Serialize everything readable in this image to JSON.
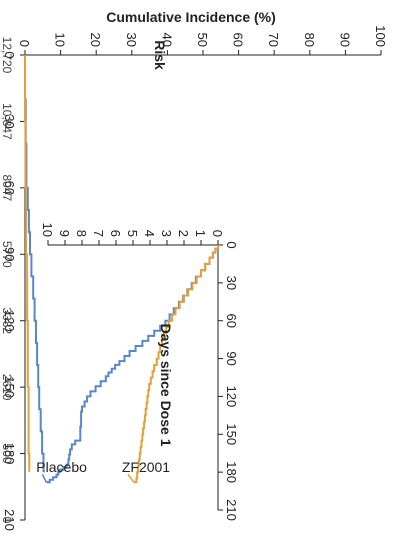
{
  "chart_data": {
    "type": "line",
    "ylabel": "Cumulative Incidence (%)",
    "xlabel": "Days since Dose 1",
    "risk_label": "Risk",
    "x_ticks": [
      "0",
      "30",
      "60",
      "90",
      "120",
      "150",
      "180",
      "210"
    ],
    "y_ticks_main": [
      "0",
      "10",
      "20",
      "30",
      "40",
      "50",
      "60",
      "70",
      "80",
      "90",
      "100"
    ],
    "y_ticks_inset": [
      "0",
      "1",
      "2",
      "3",
      "4",
      "5",
      "6",
      "7",
      "8",
      "9",
      "10"
    ],
    "number_at_risk": [
      "12,720",
      "10,847",
      "8047",
      "5770",
      "3382",
      "2610",
      "500",
      "0"
    ],
    "xlim": [
      0,
      210
    ],
    "ylim_main": [
      0,
      100
    ],
    "ylim_inset": [
      0,
      10
    ],
    "colors": {
      "placebo": "#5b86c5",
      "zf2001": "#e2a03f"
    },
    "series": [
      {
        "name": "Placebo",
        "x": [
          0,
          3,
          6,
          10,
          15,
          20,
          25,
          30,
          35,
          40,
          45,
          50,
          55,
          60,
          64,
          68,
          72,
          76,
          80,
          84,
          88,
          92,
          95,
          98,
          101,
          104,
          108,
          112,
          116,
          120,
          124,
          128,
          132,
          138,
          144,
          150,
          155,
          158,
          162,
          166,
          170,
          174,
          176,
          178,
          180,
          182,
          184,
          186,
          188
        ],
        "y": [
          0,
          0.15,
          0.3,
          0.5,
          0.75,
          1.0,
          1.3,
          1.55,
          1.8,
          2.05,
          2.3,
          2.6,
          2.85,
          3.1,
          3.4,
          3.75,
          4.1,
          4.45,
          4.85,
          5.2,
          5.5,
          5.8,
          6.05,
          6.25,
          6.45,
          6.6,
          6.9,
          7.2,
          7.5,
          7.7,
          7.85,
          8.0,
          8.05,
          8.05,
          8.1,
          8.1,
          8.4,
          8.6,
          8.7,
          8.75,
          8.8,
          8.9,
          9.1,
          9.3,
          9.4,
          9.5,
          9.7,
          9.9,
          10.1
        ],
        "main_x": [
          0,
          20,
          40,
          60,
          70,
          80,
          90,
          100,
          110,
          120,
          130,
          140,
          150,
          160,
          170,
          180,
          188
        ],
        "main_y": [
          0,
          0.2,
          0.4,
          0.8,
          1.1,
          1.4,
          1.8,
          2.3,
          2.7,
          3.1,
          3.4,
          3.7,
          4.0,
          4.4,
          4.8,
          5.2,
          5.6
        ]
      },
      {
        "name": "ZF2001",
        "x": [
          0,
          3,
          6,
          10,
          15,
          20,
          25,
          30,
          35,
          40,
          45,
          50,
          55,
          60,
          65,
          70,
          75,
          80,
          85,
          90,
          95,
          100,
          105,
          110,
          115,
          120,
          125,
          130,
          135,
          140,
          145,
          150,
          155,
          160,
          165,
          170,
          175,
          180,
          185,
          188
        ],
        "y": [
          0,
          0.15,
          0.3,
          0.5,
          0.75,
          1.0,
          1.25,
          1.5,
          1.75,
          2.0,
          2.25,
          2.5,
          2.7,
          2.9,
          3.05,
          3.2,
          3.3,
          3.4,
          3.5,
          3.6,
          3.75,
          3.85,
          3.95,
          4.05,
          4.1,
          4.15,
          4.2,
          4.25,
          4.3,
          4.35,
          4.4,
          4.45,
          4.5,
          4.55,
          4.6,
          4.65,
          4.7,
          4.75,
          4.8,
          4.95
        ],
        "main_x": [
          0,
          30,
          60,
          90,
          120,
          150,
          180,
          188
        ],
        "main_y": [
          0,
          0.1,
          0.3,
          0.6,
          0.8,
          1.0,
          1.2,
          1.3
        ]
      }
    ]
  }
}
